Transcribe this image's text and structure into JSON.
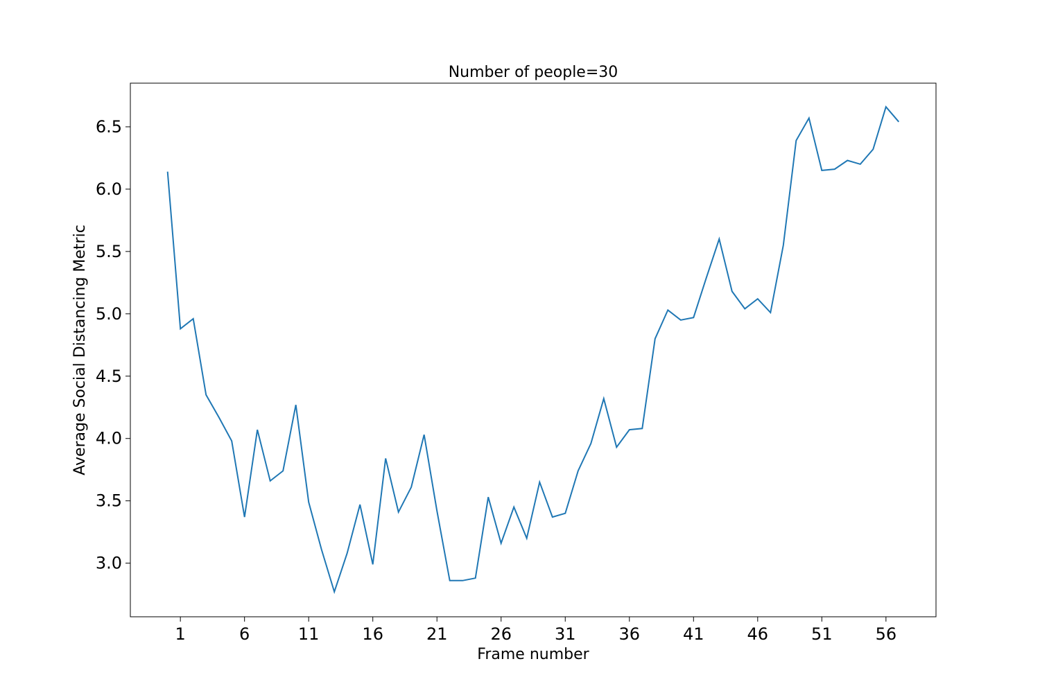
{
  "chart_data": {
    "type": "line",
    "title": "Number of people=30",
    "xlabel": "Frame number",
    "ylabel": "Average Social Distancing Metric",
    "xlim": [
      -2.9,
      59.9
    ],
    "ylim": [
      2.57,
      6.85
    ],
    "xticks": [
      1,
      6,
      11,
      16,
      21,
      26,
      31,
      36,
      41,
      46,
      51,
      56
    ],
    "yticks": [
      3.0,
      3.5,
      4.0,
      4.5,
      5.0,
      5.5,
      6.0,
      6.5
    ],
    "ytick_labels": [
      "3.0",
      "3.5",
      "4.0",
      "4.5",
      "5.0",
      "5.5",
      "6.0",
      "6.5"
    ],
    "grid": false,
    "line_color": "#1f77b4",
    "series": [
      {
        "x": [
          0,
          1,
          2,
          3,
          4,
          5,
          6,
          7,
          8,
          9,
          10,
          11,
          12,
          13,
          14,
          15,
          16,
          17,
          18,
          19,
          20,
          21,
          22,
          23,
          24,
          25,
          26,
          27,
          28,
          29,
          30,
          31,
          32,
          33,
          34,
          35,
          36,
          37,
          38,
          39,
          40,
          41,
          42,
          43,
          44,
          45,
          46,
          47,
          48,
          49,
          50,
          51,
          52,
          53,
          54,
          55,
          56,
          57
        ],
        "values": [
          6.14,
          4.88,
          4.96,
          4.35,
          4.17,
          3.98,
          3.37,
          4.07,
          3.66,
          3.74,
          4.27,
          3.49,
          3.11,
          2.77,
          3.08,
          3.47,
          2.99,
          3.84,
          3.41,
          3.61,
          4.03,
          3.42,
          2.86,
          2.86,
          2.88,
          3.53,
          3.16,
          3.45,
          3.2,
          3.65,
          3.37,
          3.4,
          3.74,
          3.96,
          4.32,
          3.93,
          4.07,
          4.08,
          4.8,
          5.03,
          4.95,
          4.97,
          5.29,
          5.6,
          5.18,
          5.04,
          5.12,
          5.01,
          5.55,
          6.39,
          6.57,
          6.15,
          6.16,
          6.23,
          6.2,
          6.32,
          6.66,
          6.54
        ]
      }
    ]
  }
}
